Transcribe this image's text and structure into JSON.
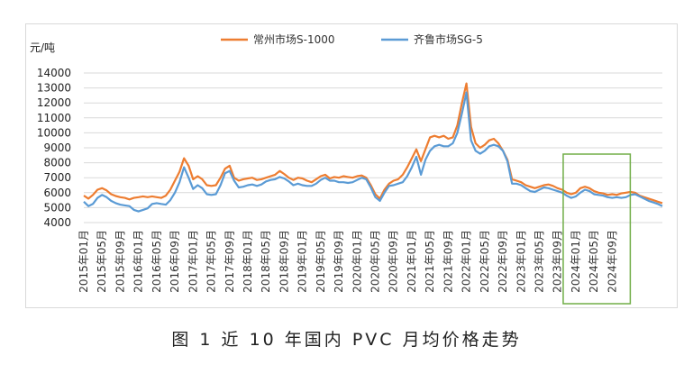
{
  "chart_data": {
    "type": "line",
    "title": "",
    "ylabel": "元/吨",
    "xlabel": "",
    "ylim": [
      4000,
      14000
    ],
    "yticks": [
      4000,
      5000,
      6000,
      7000,
      8000,
      9000,
      10000,
      11000,
      12000,
      13000,
      14000
    ],
    "grid": true,
    "legend_position": "top",
    "x_tick_labels": [
      "2015年01月",
      "2015年05月",
      "2015年09月",
      "2016年01月",
      "2016年05月",
      "2016年09月",
      "2017年01月",
      "2017年05月",
      "2017年09月",
      "2018年01月",
      "2018年05月",
      "2018年09月",
      "2019年01月",
      "2019年05月",
      "2019年09月",
      "2020年01月",
      "2020年05月",
      "2020年09月",
      "2021年01月",
      "2021年05月",
      "2021年09月",
      "2022年01月",
      "2022年05月",
      "2022年09月",
      "2023年01月",
      "2023年05月",
      "2023年09月",
      "2024年01月",
      "2024年05月",
      "2024年09月"
    ],
    "series": [
      {
        "name": "常州市场S-1000",
        "color": "#ED7D31",
        "values": [
          5800,
          5600,
          5850,
          6200,
          6300,
          6150,
          5900,
          5780,
          5700,
          5650,
          5550,
          5650,
          5700,
          5750,
          5700,
          5750,
          5700,
          5650,
          5800,
          6200,
          6800,
          7400,
          8300,
          7800,
          6900,
          7100,
          6900,
          6500,
          6450,
          6500,
          7000,
          7600,
          7800,
          7000,
          6800,
          6900,
          6950,
          7000,
          6850,
          6900,
          7000,
          7100,
          7200,
          7450,
          7250,
          7000,
          6850,
          7000,
          6950,
          6800,
          6700,
          6900,
          7100,
          7200,
          6950,
          7050,
          7000,
          7100,
          7050,
          7000,
          7100,
          7150,
          7000,
          6500,
          5900,
          5600,
          6200,
          6600,
          6800,
          6900,
          7200,
          7700,
          8300,
          8900,
          8100,
          8900,
          9700,
          9800,
          9700,
          9800,
          9600,
          9700,
          10500,
          12000,
          13300,
          10400,
          9300,
          9000,
          9200,
          9500,
          9600,
          9300,
          8800,
          8200,
          6900,
          6800,
          6700,
          6500,
          6400,
          6300,
          6400,
          6500,
          6550,
          6450,
          6300,
          6200,
          6000,
          5900,
          6000,
          6300,
          6400,
          6300,
          6100,
          6000,
          5950,
          5850,
          5900,
          5850,
          5950,
          6000,
          6050,
          6000,
          5800,
          5700,
          5600,
          5500,
          5400,
          5300
        ]
      },
      {
        "name": "齐鲁市场SG-5",
        "color": "#5B9BD5",
        "values": [
          5400,
          5100,
          5250,
          5650,
          5850,
          5700,
          5450,
          5300,
          5200,
          5150,
          5100,
          4850,
          4750,
          4850,
          4950,
          5250,
          5300,
          5250,
          5200,
          5500,
          6000,
          6700,
          7700,
          7000,
          6250,
          6500,
          6300,
          5900,
          5850,
          5900,
          6500,
          7300,
          7450,
          6800,
          6350,
          6400,
          6500,
          6550,
          6450,
          6550,
          6750,
          6850,
          6900,
          7050,
          6950,
          6750,
          6500,
          6600,
          6500,
          6450,
          6450,
          6600,
          6850,
          7000,
          6800,
          6800,
          6700,
          6700,
          6650,
          6700,
          6850,
          7000,
          6900,
          6350,
          5700,
          5450,
          6000,
          6450,
          6500,
          6600,
          6700,
          7100,
          7700,
          8400,
          7200,
          8200,
          8800,
          9100,
          9200,
          9100,
          9100,
          9300,
          10000,
          11300,
          12700,
          9500,
          8800,
          8600,
          8800,
          9100,
          9200,
          9100,
          8800,
          8100,
          6600,
          6600,
          6500,
          6300,
          6100,
          6050,
          6200,
          6350,
          6300,
          6200,
          6100,
          6000,
          5800,
          5650,
          5750,
          6000,
          6200,
          6100,
          5900,
          5850,
          5800,
          5700,
          5650,
          5700,
          5650,
          5700,
          5850,
          5900,
          5750,
          5600,
          5450,
          5350,
          5250,
          5100
        ]
      }
    ],
    "highlight_box": {
      "from_label": "2024年01月",
      "to_label": "2024年09月",
      "color": "#70AD47"
    }
  },
  "caption": "图 1  近 10 年国内 PVC 月均价格走势"
}
